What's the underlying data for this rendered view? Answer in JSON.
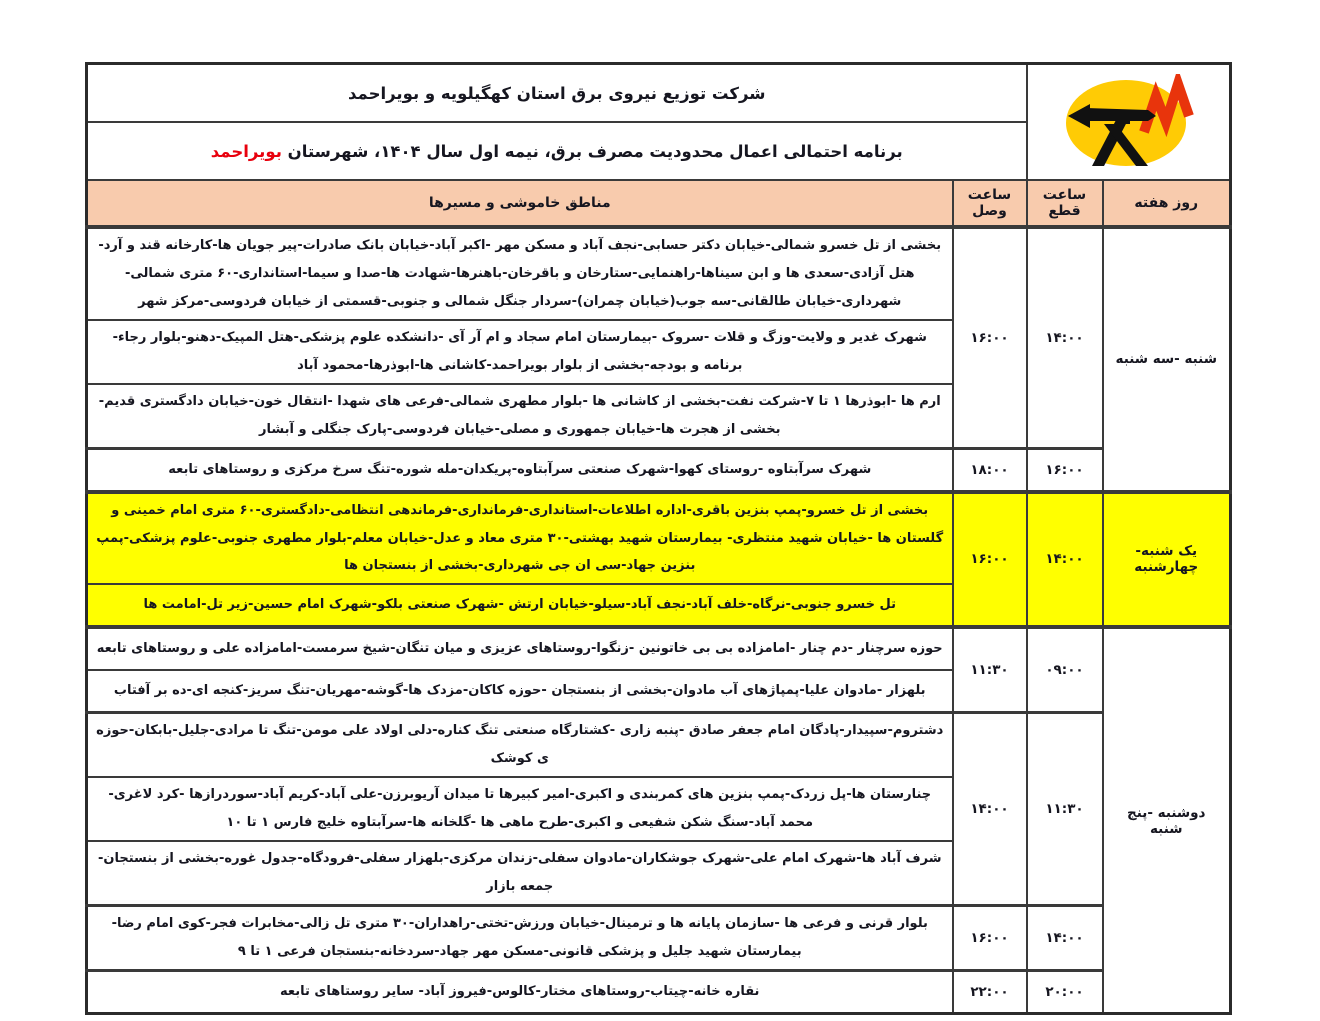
{
  "header": {
    "title1": "شرکت توزیع نیروی برق استان کهگیلویه و بویراحمد",
    "title2_prefix": "برنامه احتمالی اعمال محدودیت مصرف برق، نیمه اول سال ۱۴۰۴، شهرستان ",
    "title2_highlight": "بویراحمد",
    "logo": "power-distribution-company-logo"
  },
  "columns": {
    "areas": "مناطق خاموشی و مسیرها",
    "connect": "ساعت وصل",
    "cut": "ساعت قطع",
    "day": "روز هفته"
  },
  "colors": {
    "header_fill": "#f8cbad",
    "highlight_fill": "#ffff00",
    "accent_red": "#e8000d",
    "logo_yellow": "#ffcb05",
    "logo_red": "#e8340c",
    "border": "#3a3a3a"
  },
  "groups": [
    {
      "day": "شنبه -سه شنبه",
      "highlight": false,
      "blocks": [
        {
          "cut": "۱۴:۰۰",
          "connect": "۱۶:۰۰",
          "areas": [
            "بخشی از تل خسرو شمالی-خیابان دکتر حسابی-نجف آباد و مسکن مهر -اکبر آباد-خیابان بانک صادرات-پیر جویان ها-کارخانه قند و آرد-هتل آزادی-سعدی ها و ابن سیناها-راهنمایی-ستارخان و باقرخان-باهنرها-شهادت ها-صدا و سیما-استانداری-۶۰ متری شمالی-شهرداری-خیابان طالقانی-سه جوب(خیابان چمران)-سردار جنگل شمالی و جنوبی-قسمتی از خیابان فردوسی-مرکز شهر",
            "شهرک غدیر و ولایت-وزگ و قلات -سروک -بیمارستان امام سجاد و ام آر آی -دانشکده علوم پزشکی-هتل المپیک-دهنو-بلوار رجاء- برنامه و بودجه-بخشی از بلوار بویراحمد-کاشانی ها-ابوذرها-محمود آباد",
            "ارم ها -ابوذرها ۱ تا ۷-شرکت نفت-بخشی از کاشانی ها -بلوار مطهری شمالی-فرعی های شهدا -انتقال خون-خیابان دادگستری قدیم-بخشی از هجرت ها-خیابان جمهوری و مصلی-خیابان فردوسی-پارک جنگلی و آبشار"
          ]
        },
        {
          "cut": "۱۶:۰۰",
          "connect": "۱۸:۰۰",
          "areas": [
            "شهرک سرآبتاوه -روستای کهوا-شهرک صنعتی سرآبتاوه-پریکدان-مله شوره-تنگ سرخ مرکزی و روستاهای تابعه"
          ]
        }
      ]
    },
    {
      "day": "یک شنبه-چهارشنبه",
      "highlight": true,
      "blocks": [
        {
          "cut": "۱۴:۰۰",
          "connect": "۱۶:۰۰",
          "areas": [
            "بخشی از تل خسرو-پمپ بنزین باقری-اداره اطلاعات-استانداری-فرمانداری-فرماندهی انتظامی-دادگستری-۶۰ متری امام خمینی و گلستان ها -خیابان شهید منتظری- بیمارستان شهید بهشتی-۳۰ متری معاد و عدل-خیابان معلم-بلوار مطهری جنوبی-علوم پزشکی-پمپ بنزین جهاد-سی ان جی شهرداری-بخشی از بنستجان ها",
            "تل خسرو جنوبی-نرگاه-خلف آباد-نجف آباد-سیلو-خیابان ارتش -شهرک صنعتی بلکو-شهرک امام حسین-زیر تل-امامت ها"
          ]
        }
      ]
    },
    {
      "day": "دوشنبه -پنج شنبه",
      "highlight": false,
      "blocks": [
        {
          "cut": "۰۹:۰۰",
          "connect": "۱۱:۳۰",
          "areas": [
            "حوزه سرچنار -دم چنار -امامزاده بی بی خاتونین -زنگوا-روستاهای عزیزی و میان تنگان-شیخ سرمست-امامزاده علی و روستاهای تابعه",
            "بلهزار -مادوان علیا-پمپاژهای آب مادوان-بخشی از بنستجان -حوزه کاکان-مزدک ها-گوشه-مهریان-تنگ سریز-کنجه ای-ده بر آفتاب"
          ]
        },
        {
          "cut": "۱۱:۳۰",
          "connect": "۱۴:۰۰",
          "areas": [
            "دشتروم-سپیدار-پادگان امام جعفر صادق -پنبه زاری -کشتارگاه صنعتی تنگ کناره-دلی اولاد علی مومن-تنگ تا مرادی-جلیل-بابکان-حوزه ی کوشک",
            "چنارستان ها-پل زردک-پمپ بنزین های کمربندی و اکبری-امیر کبیرها تا میدان آریوبرزن-علی آباد-کریم آباد-سوردرازها -کرد لاغری-محمد آباد-سنگ شکن شفیعی و اکبری-طرح ماهی ها -گلخانه ها-سرآبتاوه خلیج فارس ۱ تا ۱۰",
            "شرف آباد ها-شهرک امام علی-شهرک جوشکاران-مادوان سفلی-زندان مرکزی-بلهزار سفلی-فرودگاه-جدول غوره-بخشی از بنستجان-جمعه بازار"
          ]
        },
        {
          "cut": "۱۴:۰۰",
          "connect": "۱۶:۰۰",
          "areas": [
            "بلوار قرنی و فرعی ها -سازمان پایانه ها و ترمینال-خیابان ورزش-تختی-راهداران-۳۰ متری تل زالی-مخابرات فجر-کوی امام رضا-بیمارستان شهید جلیل و پزشکی قانونی-مسکن مهر جهاد-سردخانه-بنستجان فرعی ۱ تا ۹"
          ]
        },
        {
          "cut": "۲۰:۰۰",
          "connect": "۲۲:۰۰",
          "areas": [
            "نقاره خانه-چیتاب-روستاهای مختار-کالوس-فیروز آباد- سایر روستاهای تابعه"
          ]
        }
      ]
    }
  ]
}
